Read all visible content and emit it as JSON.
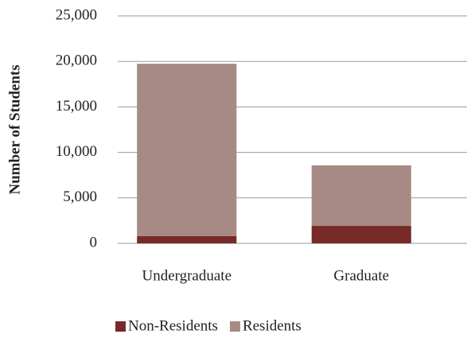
{
  "chart_data": {
    "type": "stacked_bar",
    "y_label": "Number of Students",
    "categories": [
      "Undergraduate",
      "Graduate"
    ],
    "series": [
      {
        "name": "Non-Residents",
        "color": "#772a28",
        "values": [
          790,
          1920
        ]
      },
      {
        "name": "Residents",
        "color": "#a78a85",
        "values": [
          18950,
          6650
        ]
      }
    ],
    "ylim": [
      0,
      25000
    ],
    "yticks": [
      0,
      {
        "value": 5000,
        "label": "5,000"
      },
      {
        "value": 10000,
        "label": "10,000"
      },
      {
        "value": 15000,
        "label": "15,000"
      },
      {
        "value": 20000,
        "label": "20,000"
      },
      {
        "value": 25000,
        "label": "25,000"
      }
    ],
    "grid": true,
    "legend": "bottom"
  }
}
